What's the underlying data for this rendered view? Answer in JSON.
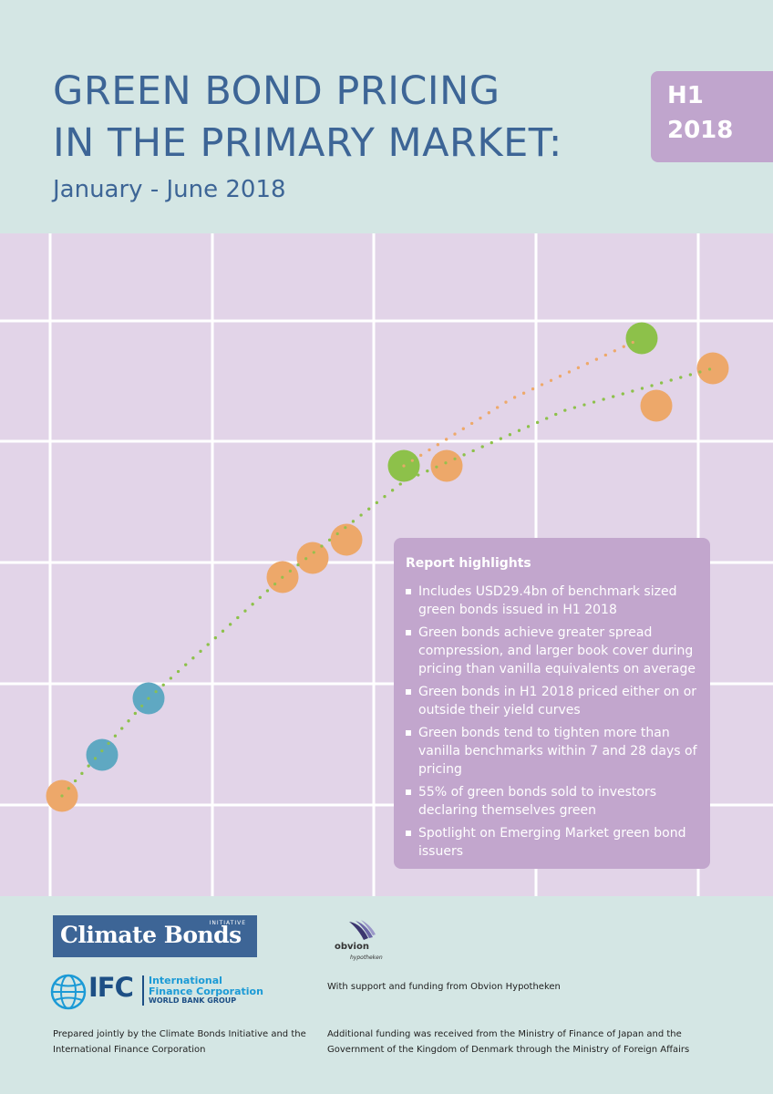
{
  "header": {
    "title_line1": "GREEN BOND PRICING",
    "title_line2": "IN THE PRIMARY MARKET:",
    "subtitle": "January - June 2018",
    "badge_line1": "H1",
    "badge_line2": "2018"
  },
  "colors": {
    "header_bg": "#d4e6e4",
    "title": "#3d6596",
    "badge": "#c0a5cd",
    "chart_bg": "#e2d4e8",
    "highlights_bg": "#c2a6cd",
    "dot_orange": "#eda86a",
    "dot_green": "#8dc14a",
    "dot_blue": "#5fa8c2"
  },
  "chart_data": {
    "type": "scatter",
    "title": "",
    "xlabel": "",
    "ylabel": "",
    "grid": true,
    "legend": "none",
    "xlim": [
      0,
      848
    ],
    "ylim": [
      0,
      727
    ],
    "series": [
      {
        "color": "orange",
        "x": [
          68,
          310,
          343,
          380,
          490,
          720,
          782
        ],
        "y": [
          110,
          350,
          371,
          391,
          472,
          538,
          579
        ]
      },
      {
        "color": "green",
        "x": [
          443,
          704
        ],
        "y": [
          472,
          612
        ]
      },
      {
        "color": "blue",
        "x": [
          112,
          163
        ],
        "y": [
          155,
          217
        ]
      }
    ],
    "trendlines": [
      {
        "color": "green",
        "style": "dotted",
        "x": [
          68,
          163,
          310,
          443,
          620,
          782
        ],
        "y": [
          110,
          217,
          350,
          455,
          533,
          579
        ]
      },
      {
        "color": "orange",
        "style": "dotted",
        "x": [
          443,
          560,
          704
        ],
        "y": [
          472,
          545,
          612
        ]
      }
    ]
  },
  "highlights": {
    "title": "Report highlights",
    "items": [
      "Includes USD29.4bn of benchmark sized green bonds issued in H1 2018",
      "Green bonds achieve greater spread compression, and larger book cover during pricing than vanilla equivalents on average",
      "Green bonds in H1 2018 priced either on or outside their yield curves",
      "Green bonds tend to tighten more than vanilla benchmarks within 7 and 28 days of pricing",
      "55% of green bonds sold to investors declaring themselves green",
      "Spotlight on Emerging Market green bond issuers"
    ]
  },
  "footer": {
    "cbi_initiative": "INITIATIVE",
    "cbi_name": "Climate Bonds",
    "ifc_abbr": "IFC",
    "ifc_name_line1": "International",
    "ifc_name_line2": "Finance Corporation",
    "ifc_group": "WORLD BANK GROUP",
    "ifc_logo_icon": "globe-icon",
    "obvion_logo_icon": "bird-icon",
    "obvion_name": "obvion",
    "obvion_sub": "hypotheken",
    "support_text": "With support and funding from Obvion Hypotheken",
    "prepared_text": "Prepared jointly by the Climate Bonds Initiative and the International Finance Corporation",
    "funding_text": "Additional funding was received from the Ministry of Finance of Japan and the Government of the Kingdom of Denmark through the Ministry of Foreign Affairs"
  }
}
